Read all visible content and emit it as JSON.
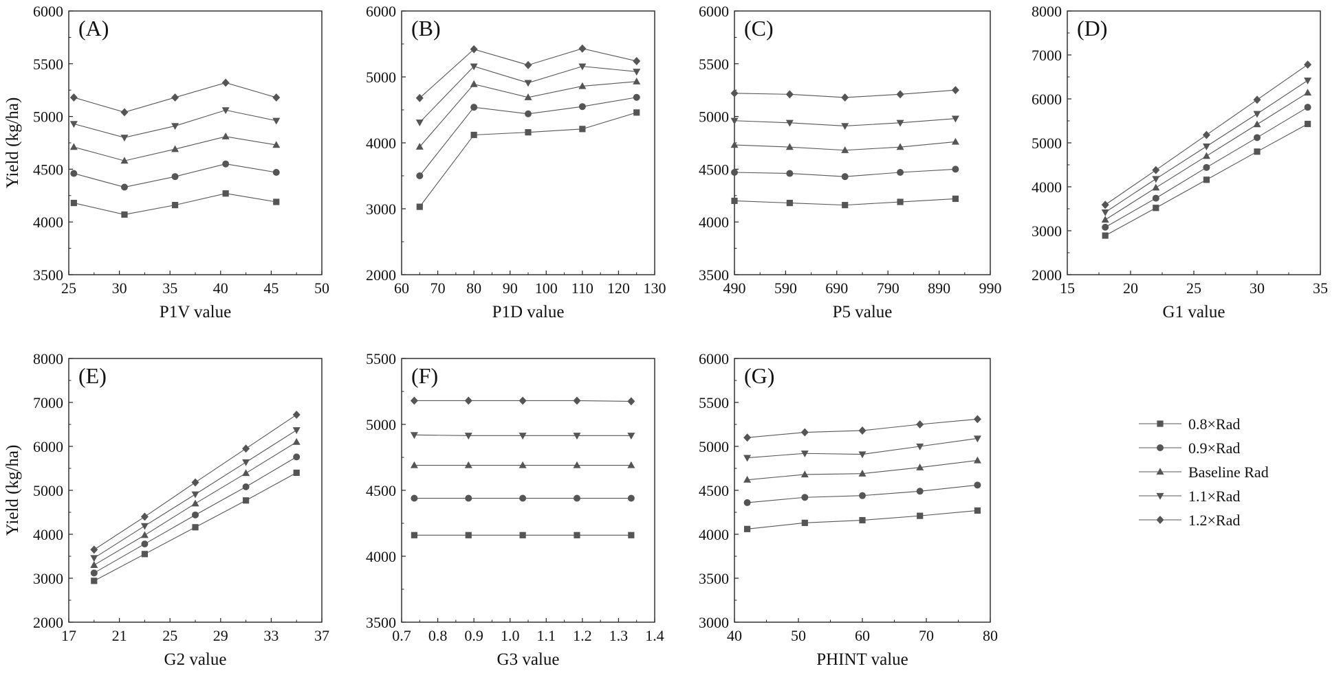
{
  "figure": {
    "y_axis_title": "Yield (kg/ha)",
    "legend": [
      "0.8×Rad",
      "0.9×Rad",
      "Baseline Rad",
      "1.1×Rad",
      "1.2×Rad"
    ],
    "marker_shapes": [
      "square",
      "circle",
      "triangle-up",
      "triangle-down",
      "diamond"
    ],
    "colors": {
      "series": "#555555",
      "markers": "#555555",
      "axes": "#222222"
    }
  },
  "chart_data": [
    {
      "panel": "(A)",
      "type": "line",
      "xlabel": "P1V value",
      "ylabel": "Yield (kg/ha)",
      "xlim": [
        25,
        50
      ],
      "ylim": [
        3500,
        6000
      ],
      "xticks": [
        25,
        30,
        35,
        40,
        45,
        50
      ],
      "yticks": [
        3500,
        4000,
        4500,
        5000,
        5500,
        6000
      ],
      "x": [
        25.5,
        30.5,
        35.5,
        40.5,
        45.5
      ],
      "series": [
        {
          "name": "0.8×Rad",
          "values": [
            4180,
            4070,
            4160,
            4270,
            4190
          ]
        },
        {
          "name": "0.9×Rad",
          "values": [
            4460,
            4330,
            4430,
            4550,
            4470
          ]
        },
        {
          "name": "Baseline Rad",
          "values": [
            4710,
            4580,
            4690,
            4810,
            4730
          ]
        },
        {
          "name": "1.1×Rad",
          "values": [
            4930,
            4800,
            4910,
            5060,
            4960
          ]
        },
        {
          "name": "1.2×Rad",
          "values": [
            5180,
            5040,
            5180,
            5320,
            5180
          ]
        }
      ]
    },
    {
      "panel": "(B)",
      "type": "line",
      "xlabel": "P1D value",
      "ylabel": "",
      "xlim": [
        60,
        130
      ],
      "ylim": [
        2000,
        6000
      ],
      "xticks": [
        60,
        70,
        80,
        90,
        100,
        110,
        120,
        130
      ],
      "yticks": [
        2000,
        3000,
        4000,
        5000,
        6000
      ],
      "x": [
        65,
        80,
        95,
        110,
        125
      ],
      "series": [
        {
          "name": "0.8×Rad",
          "values": [
            3030,
            4120,
            4160,
            4210,
            4460
          ]
        },
        {
          "name": "0.9×Rad",
          "values": [
            3500,
            4540,
            4440,
            4550,
            4690
          ]
        },
        {
          "name": "Baseline Rad",
          "values": [
            3940,
            4890,
            4690,
            4860,
            4930
          ]
        },
        {
          "name": "1.1×Rad",
          "values": [
            4310,
            5160,
            4910,
            5160,
            5080
          ]
        },
        {
          "name": "1.2×Rad",
          "values": [
            4680,
            5420,
            5180,
            5430,
            5240
          ]
        }
      ]
    },
    {
      "panel": "(C)",
      "type": "line",
      "xlabel": "P5 value",
      "ylabel": "",
      "xlim": [
        490,
        990
      ],
      "ylim": [
        3500,
        6000
      ],
      "xticks": [
        490,
        590,
        690,
        790,
        890,
        990
      ],
      "yticks": [
        3500,
        4000,
        4500,
        5000,
        5500,
        6000
      ],
      "x": [
        490,
        598,
        706,
        814,
        922
      ],
      "series": [
        {
          "name": "0.8×Rad",
          "values": [
            4200,
            4180,
            4160,
            4190,
            4220
          ]
        },
        {
          "name": "0.9×Rad",
          "values": [
            4470,
            4460,
            4430,
            4470,
            4500
          ]
        },
        {
          "name": "Baseline Rad",
          "values": [
            4730,
            4710,
            4680,
            4710,
            4760
          ]
        },
        {
          "name": "1.1×Rad",
          "values": [
            4960,
            4940,
            4910,
            4940,
            4980
          ]
        },
        {
          "name": "1.2×Rad",
          "values": [
            5220,
            5210,
            5180,
            5210,
            5250
          ]
        }
      ]
    },
    {
      "panel": "(D)",
      "type": "line",
      "xlabel": "G1 value",
      "ylabel": "",
      "xlim": [
        15,
        35
      ],
      "ylim": [
        2000,
        8000
      ],
      "xticks": [
        15,
        20,
        25,
        30,
        35
      ],
      "yticks": [
        2000,
        3000,
        4000,
        5000,
        6000,
        7000,
        8000
      ],
      "x": [
        18,
        22,
        26,
        30,
        34
      ],
      "series": [
        {
          "name": "0.8×Rad",
          "values": [
            2890,
            3520,
            4160,
            4800,
            5430
          ]
        },
        {
          "name": "0.9×Rad",
          "values": [
            3080,
            3740,
            4440,
            5120,
            5810
          ]
        },
        {
          "name": "Baseline Rad",
          "values": [
            3250,
            3980,
            4700,
            5420,
            6140
          ]
        },
        {
          "name": "1.1×Rad",
          "values": [
            3420,
            4180,
            4920,
            5660,
            6420
          ]
        },
        {
          "name": "1.2×Rad",
          "values": [
            3590,
            4380,
            5180,
            5980,
            6780
          ]
        }
      ]
    },
    {
      "panel": "(E)",
      "type": "line",
      "xlabel": "G2 value",
      "ylabel": "Yield (kg/ha)",
      "xlim": [
        17,
        37
      ],
      "ylim": [
        2000,
        8000
      ],
      "xticks": [
        17,
        21,
        25,
        29,
        33,
        37
      ],
      "yticks": [
        2000,
        3000,
        4000,
        5000,
        6000,
        7000,
        8000
      ],
      "x": [
        19,
        23,
        27,
        31,
        35
      ],
      "series": [
        {
          "name": "0.8×Rad",
          "values": [
            2940,
            3550,
            4160,
            4770,
            5400
          ]
        },
        {
          "name": "0.9×Rad",
          "values": [
            3120,
            3780,
            4440,
            5080,
            5760
          ]
        },
        {
          "name": "Baseline Rad",
          "values": [
            3300,
            3980,
            4700,
            5390,
            6100
          ]
        },
        {
          "name": "1.1×Rad",
          "values": [
            3460,
            4190,
            4910,
            5640,
            6370
          ]
        },
        {
          "name": "1.2×Rad",
          "values": [
            3650,
            4400,
            5180,
            5950,
            6720
          ]
        }
      ]
    },
    {
      "panel": "(F)",
      "type": "line",
      "xlabel": "G3 value",
      "ylabel": "",
      "xlim": [
        0.7,
        1.4
      ],
      "ylim": [
        3500,
        5500
      ],
      "xticks": [
        "0.7",
        "0.8",
        "0.9",
        "1.0",
        "1.1",
        "1.2",
        "1.3",
        "1.4"
      ],
      "yticks": [
        3500,
        4000,
        4500,
        5000,
        5500
      ],
      "x": [
        0.735,
        0.885,
        1.035,
        1.185,
        1.335
      ],
      "series": [
        {
          "name": "0.8×Rad",
          "values": [
            4160,
            4160,
            4160,
            4160,
            4160
          ]
        },
        {
          "name": "0.9×Rad",
          "values": [
            4440,
            4440,
            4440,
            4440,
            4440
          ]
        },
        {
          "name": "Baseline Rad",
          "values": [
            4690,
            4690,
            4690,
            4690,
            4690
          ]
        },
        {
          "name": "1.1×Rad",
          "values": [
            4920,
            4915,
            4915,
            4915,
            4915
          ]
        },
        {
          "name": "1.2×Rad",
          "values": [
            5180,
            5180,
            5180,
            5180,
            5175
          ]
        }
      ]
    },
    {
      "panel": "(G)",
      "type": "line",
      "xlabel": "PHINT value",
      "ylabel": "",
      "xlim": [
        40,
        80
      ],
      "ylim": [
        3000,
        6000
      ],
      "xticks": [
        40,
        50,
        60,
        70,
        80
      ],
      "yticks": [
        3000,
        3500,
        4000,
        4500,
        5000,
        5500,
        6000
      ],
      "x": [
        42,
        51,
        60,
        69,
        78
      ],
      "series": [
        {
          "name": "0.8×Rad",
          "values": [
            4060,
            4130,
            4160,
            4210,
            4270
          ]
        },
        {
          "name": "0.9×Rad",
          "values": [
            4360,
            4420,
            4440,
            4490,
            4560
          ]
        },
        {
          "name": "Baseline Rad",
          "values": [
            4620,
            4680,
            4690,
            4760,
            4840
          ]
        },
        {
          "name": "1.1×Rad",
          "values": [
            4870,
            4920,
            4910,
            5000,
            5090
          ]
        },
        {
          "name": "1.2×Rad",
          "values": [
            5100,
            5160,
            5180,
            5250,
            5310
          ]
        }
      ]
    }
  ]
}
